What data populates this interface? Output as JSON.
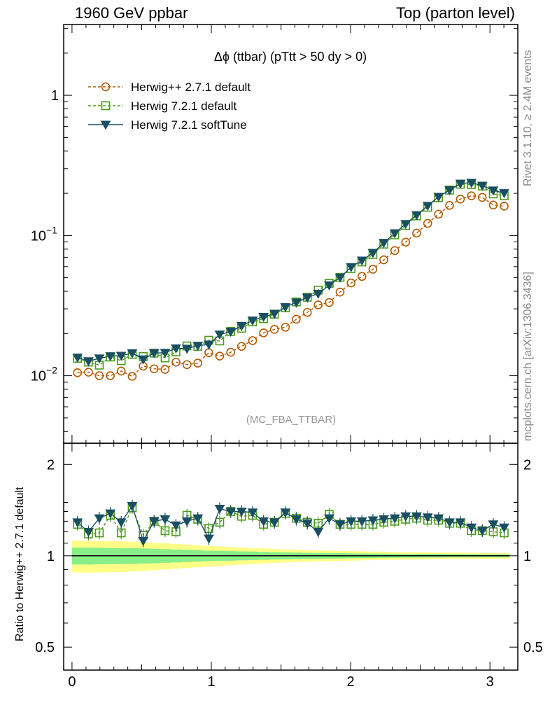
{
  "header": {
    "left": "1960 GeV ppbar",
    "right": "Top (parton level)"
  },
  "side": {
    "rivet": "Rivet 3.1.10, ≥ 2.4M events",
    "mcplots": "mcplots.cern.ch [arXiv:1306.3436]"
  },
  "chart_data": [
    {
      "type": "line",
      "panel": "main",
      "title": "Δϕ (ttbar) (pTtt > 50 dy > 0)",
      "watermark": "(MC_FBA_TTBAR)",
      "yscale": "log",
      "xlim": [
        -0.06,
        3.2
      ],
      "ylim": [
        0.0033,
        3.2
      ],
      "ytick_labels": [
        {
          "value": 1,
          "base": "1",
          "exp": ""
        },
        {
          "value": 0.1,
          "base": "10",
          "exp": "−1"
        },
        {
          "value": 0.01,
          "base": "10",
          "exp": "−2"
        }
      ],
      "x": [
        0.039,
        0.118,
        0.196,
        0.275,
        0.353,
        0.432,
        0.511,
        0.589,
        0.668,
        0.746,
        0.825,
        0.903,
        0.982,
        1.06,
        1.139,
        1.217,
        1.296,
        1.375,
        1.453,
        1.532,
        1.61,
        1.689,
        1.767,
        1.846,
        1.924,
        2.003,
        2.081,
        2.16,
        2.238,
        2.317,
        2.395,
        2.474,
        2.553,
        2.631,
        2.71,
        2.788,
        2.867,
        2.945,
        3.024,
        3.102
      ],
      "series": [
        {
          "name": "Herwig++ 2.7.1 default",
          "color": "#b35900",
          "marker": "circle-open",
          "linestyle": "dashed",
          "values": [
            0.0105,
            0.0106,
            0.01,
            0.01,
            0.0108,
            0.0099,
            0.0117,
            0.0112,
            0.0111,
            0.0125,
            0.012,
            0.0123,
            0.0146,
            0.0138,
            0.0147,
            0.0162,
            0.0178,
            0.0202,
            0.0214,
            0.0222,
            0.0253,
            0.0283,
            0.032,
            0.0333,
            0.0395,
            0.0459,
            0.0511,
            0.0575,
            0.0671,
            0.0781,
            0.0897,
            0.104,
            0.122,
            0.142,
            0.164,
            0.182,
            0.192,
            0.187,
            0.165,
            0.162
          ]
        },
        {
          "name": "Herwig 7.2.1 default",
          "color": "#4a9a1a",
          "marker": "square-open",
          "linestyle": "dashed",
          "values": [
            0.0133,
            0.0125,
            0.0119,
            0.0136,
            0.0128,
            0.0142,
            0.0137,
            0.0145,
            0.0134,
            0.0148,
            0.0163,
            0.0162,
            0.0179,
            0.0177,
            0.0207,
            0.0218,
            0.0242,
            0.0255,
            0.0275,
            0.0305,
            0.0336,
            0.0363,
            0.0408,
            0.0456,
            0.0503,
            0.0581,
            0.0648,
            0.0732,
            0.0868,
            0.101,
            0.118,
            0.138,
            0.159,
            0.186,
            0.211,
            0.232,
            0.231,
            0.225,
            0.198,
            0.192
          ]
        },
        {
          "name": "Herwig 7.2.1 softTune",
          "color": "#1a4f63",
          "marker": "triangle-down",
          "linestyle": "solid",
          "values": [
            0.0135,
            0.0127,
            0.0133,
            0.0138,
            0.0139,
            0.0145,
            0.0131,
            0.0145,
            0.0146,
            0.0157,
            0.0156,
            0.0164,
            0.0167,
            0.0197,
            0.0206,
            0.0227,
            0.0248,
            0.0263,
            0.0277,
            0.0309,
            0.0333,
            0.0361,
            0.0385,
            0.0442,
            0.0502,
            0.0596,
            0.0664,
            0.0753,
            0.0889,
            0.104,
            0.121,
            0.14,
            0.163,
            0.189,
            0.211,
            0.235,
            0.238,
            0.227,
            0.21,
            0.201
          ]
        }
      ]
    },
    {
      "type": "line",
      "panel": "ratio",
      "ylabel": "Ratio to Herwig++ 2.7.1 default",
      "yscale": "log",
      "xlim": [
        -0.06,
        3.2
      ],
      "ylim": [
        0.42,
        2.35
      ],
      "ytick_labels": [
        {
          "value": 2,
          "label": "2"
        },
        {
          "value": 1,
          "label": "1"
        },
        {
          "value": 0.5,
          "label": "0.5"
        }
      ],
      "xtick_labels": [
        {
          "value": 0,
          "label": "0"
        },
        {
          "value": 1,
          "label": "1"
        },
        {
          "value": 2,
          "label": "2"
        },
        {
          "value": 3,
          "label": "3"
        }
      ],
      "band_inner": [
        0.064,
        0.064,
        0.063,
        0.062,
        0.061,
        0.059,
        0.057,
        0.055,
        0.052,
        0.049,
        0.046,
        0.043,
        0.04,
        0.038,
        0.036,
        0.034,
        0.032,
        0.03,
        0.028,
        0.026,
        0.025,
        0.023,
        0.022,
        0.021,
        0.02,
        0.019,
        0.018,
        0.017,
        0.016,
        0.015,
        0.014,
        0.014,
        0.013,
        0.013,
        0.012,
        0.012,
        0.012,
        0.011,
        0.011,
        0.011
      ],
      "band_outer": [
        0.12,
        0.12,
        0.119,
        0.118,
        0.116,
        0.113,
        0.109,
        0.104,
        0.099,
        0.094,
        0.089,
        0.084,
        0.079,
        0.074,
        0.069,
        0.065,
        0.061,
        0.057,
        0.053,
        0.05,
        0.047,
        0.044,
        0.042,
        0.04,
        0.038,
        0.036,
        0.034,
        0.033,
        0.031,
        0.03,
        0.028,
        0.027,
        0.026,
        0.025,
        0.024,
        0.024,
        0.023,
        0.023,
        0.022,
        0.022
      ],
      "series": [
        {
          "name": "Herwig 7.2.1 default",
          "color": "#4a9a1a",
          "marker": "square-open",
          "linestyle": "dashed",
          "values": [
            1.27,
            1.18,
            1.19,
            1.36,
            1.19,
            1.44,
            1.17,
            1.3,
            1.21,
            1.2,
            1.36,
            1.32,
            1.23,
            1.29,
            1.4,
            1.35,
            1.36,
            1.27,
            1.29,
            1.38,
            1.33,
            1.29,
            1.28,
            1.37,
            1.27,
            1.27,
            1.27,
            1.27,
            1.29,
            1.3,
            1.32,
            1.33,
            1.31,
            1.31,
            1.28,
            1.28,
            1.21,
            1.21,
            1.2,
            1.19
          ]
        },
        {
          "name": "Herwig 7.2.1 softTune",
          "color": "#1a4f63",
          "marker": "triangle-down",
          "linestyle": "solid",
          "values": [
            1.29,
            1.2,
            1.33,
            1.38,
            1.29,
            1.46,
            1.12,
            1.3,
            1.32,
            1.26,
            1.3,
            1.33,
            1.14,
            1.43,
            1.4,
            1.4,
            1.39,
            1.3,
            1.29,
            1.39,
            1.32,
            1.28,
            1.2,
            1.33,
            1.27,
            1.3,
            1.3,
            1.31,
            1.32,
            1.33,
            1.35,
            1.35,
            1.34,
            1.33,
            1.29,
            1.29,
            1.24,
            1.21,
            1.27,
            1.24
          ]
        }
      ]
    }
  ]
}
